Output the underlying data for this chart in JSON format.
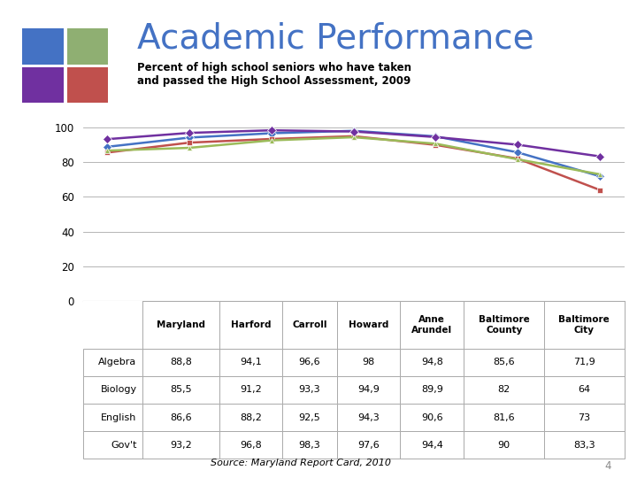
{
  "title": "Academic Performance",
  "subtitle": "Percent of high school seniors who have taken\nand passed the High School Assessment, 2009",
  "categories": [
    "Maryland",
    "Harford",
    "Carroll",
    "Howard",
    "Anne\nArundel",
    "Baltimore\nCounty",
    "Baltimore\nCity"
  ],
  "series": {
    "Algebra": [
      88.8,
      94.1,
      96.6,
      98,
      94.8,
      85.6,
      71.9
    ],
    "Biology": [
      85.5,
      91.2,
      93.3,
      94.9,
      89.9,
      82,
      64
    ],
    "English": [
      86.6,
      88.2,
      92.5,
      94.3,
      90.6,
      81.6,
      73
    ],
    "Gov't": [
      93.2,
      96.8,
      98.3,
      97.6,
      94.4,
      90,
      83.3
    ]
  },
  "colors": {
    "Algebra": "#4472C4",
    "Biology": "#C0504D",
    "English": "#9BBB59",
    "Gov't": "#7030A0"
  },
  "markers": {
    "Algebra": "D",
    "Biology": "s",
    "English": "^",
    "Gov't": "D"
  },
  "ylim": [
    0,
    110
  ],
  "yticks": [
    0,
    20,
    40,
    60,
    80,
    100
  ],
  "source": "Source: Maryland Report Card, 2010",
  "page_num": "4",
  "table_data": {
    "Algebra": [
      "88,8",
      "94,1",
      "96,6",
      "98",
      "94,8",
      "85,6",
      "71,9"
    ],
    "Biology": [
      "85,5",
      "91,2",
      "93,3",
      "94,9",
      "89,9",
      "82",
      "64"
    ],
    "English": [
      "86,6",
      "88,2",
      "92,5",
      "94,3",
      "90,6",
      "81,6",
      "73"
    ],
    "Gov't": [
      "93,2",
      "96,8",
      "98,3",
      "97,6",
      "94,4",
      "90",
      "83,3"
    ]
  },
  "col_headers": [
    "Maryland",
    "Harford",
    "Carroll",
    "Howard",
    "Anne\nArundel",
    "Baltimore\nCounty",
    "Baltimore\nCity"
  ],
  "background_color": "#FFFFFF",
  "grid_color": "#AAAAAA",
  "title_color": "#4472C4",
  "header_squares": [
    [
      "#4472C4",
      "#8FAF72"
    ],
    [
      "#7030A0",
      "#C0504D"
    ]
  ]
}
